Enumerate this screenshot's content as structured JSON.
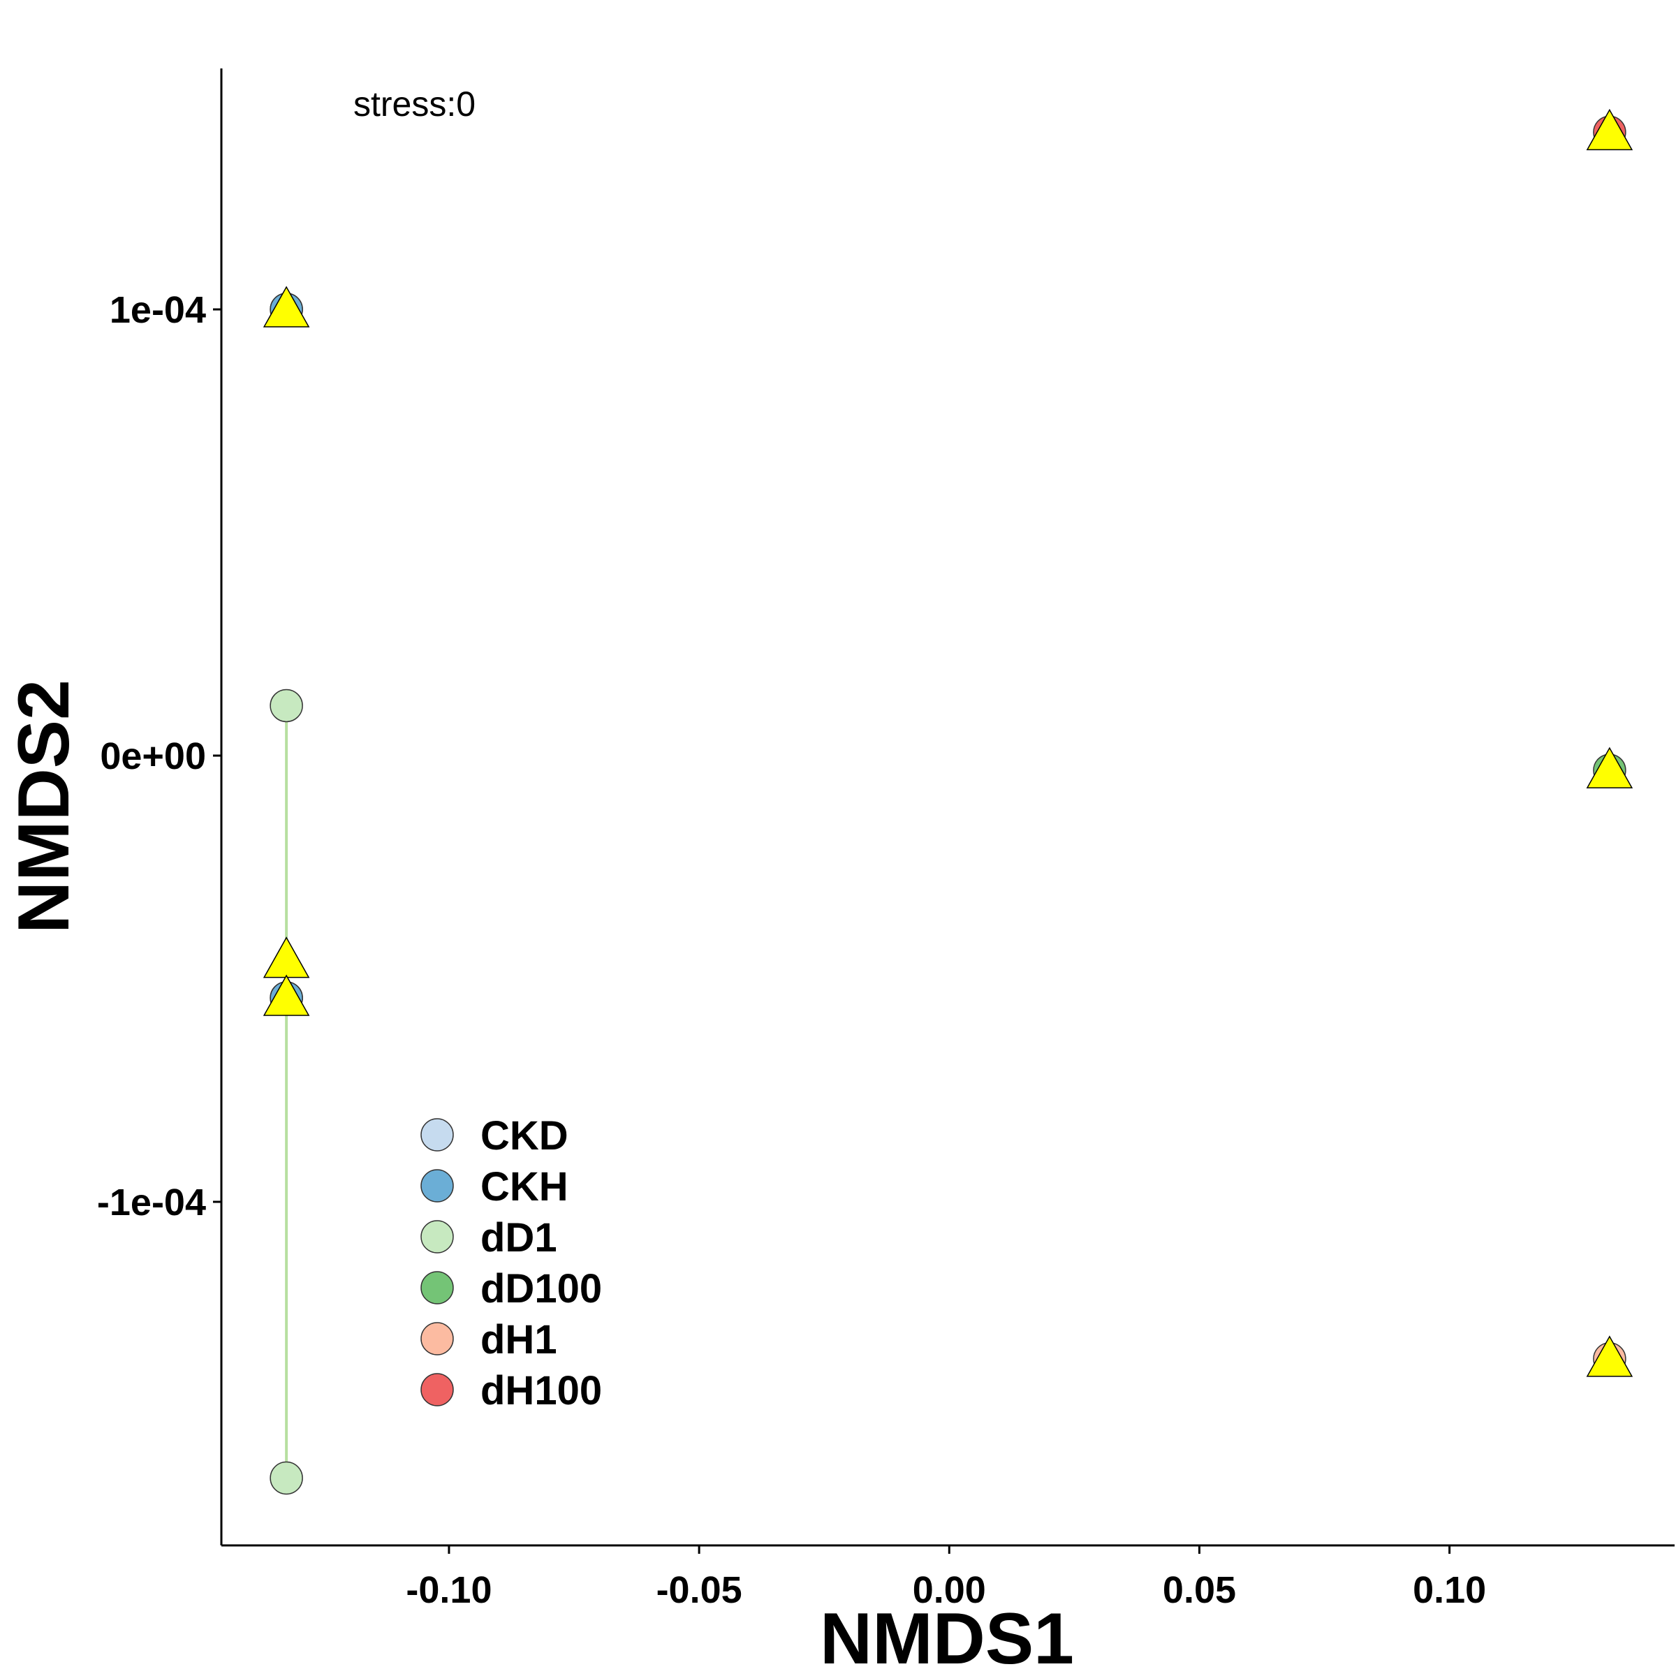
{
  "chart_data": {
    "type": "scatter",
    "xlabel": "NMDS1",
    "ylabel": "NMDS2",
    "annotation": "stress:0",
    "xlim": [
      -0.1455,
      0.145
    ],
    "ylim": [
      -0.000177,
      0.000154
    ],
    "x_ticks": [
      -0.1,
      -0.05,
      0.0,
      0.05,
      0.1
    ],
    "x_tick_labels": [
      "-0.10",
      "-0.05",
      "0.00",
      "0.05",
      "0.10"
    ],
    "y_ticks": [
      -0.0001,
      0,
      0.0001
    ],
    "y_tick_labels": [
      "-1e-04",
      "0e+00",
      "1e-04"
    ],
    "grid": false,
    "legend_position": "bottom-left",
    "series": [
      {
        "name": "CKD",
        "color": "#c6dbef",
        "points": [
          [
            -0.1325,
            0.0001
          ],
          [
            -0.1325,
            -5.43e-05
          ]
        ]
      },
      {
        "name": "CKH",
        "color": "#6baed6",
        "points": [
          [
            -0.1325,
            0.0001
          ],
          [
            -0.1325,
            -5.43e-05
          ]
        ]
      },
      {
        "name": "dD1",
        "color": "#c7e9c0",
        "points": [
          [
            -0.1325,
            1.12e-05
          ],
          [
            -0.1325,
            -0.0001619
          ]
        ]
      },
      {
        "name": "dD100",
        "color": "#74c476",
        "points": [
          [
            0.132,
            -3.3e-06
          ]
        ]
      },
      {
        "name": "dH1",
        "color": "#fcbba1",
        "points": [
          [
            0.132,
            -0.0001352
          ]
        ]
      },
      {
        "name": "dH100",
        "color": "#ef6262",
        "points": [
          [
            0.132,
            0.0001397
          ]
        ]
      }
    ],
    "connectors": [
      {
        "color": "#b7dfa0",
        "from": [
          -0.1325,
          1.12e-05
        ],
        "to": [
          -0.1325,
          -0.0001619
        ]
      }
    ],
    "triangles": {
      "color": "#ffff00",
      "points": [
        [
          -0.1325,
          0.0001
        ],
        [
          -0.1325,
          -4.58e-05
        ],
        [
          -0.1325,
          -5.43e-05
        ],
        [
          0.132,
          0.0001397
        ],
        [
          0.132,
          -3.3e-06
        ],
        [
          0.132,
          -0.0001352
        ]
      ]
    }
  }
}
